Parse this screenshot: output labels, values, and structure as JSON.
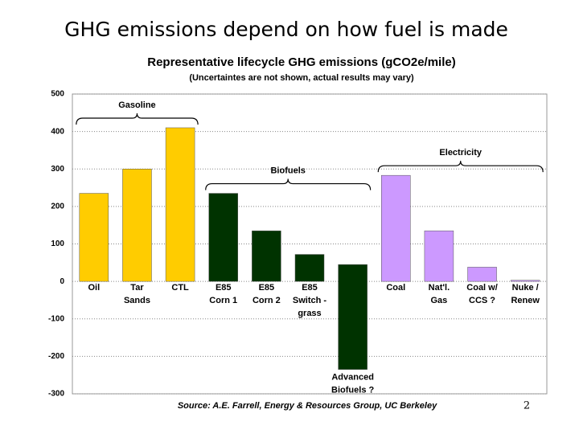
{
  "slide_title": "GHG emissions depend on how fuel is made",
  "page_number": "2",
  "chart_data": {
    "type": "bar",
    "title": "Representative lifecycle GHG emissions (gCO2e/mile)",
    "subtitle": "(Uncertaintes are not shown, actual results may vary)",
    "source": "Source: A.E. Farrell, Energy & Resources Group, UC Berkeley",
    "categories": [
      [
        "Oil"
      ],
      [
        "Tar",
        "Sands"
      ],
      [
        "CTL"
      ],
      [
        "E85",
        "Corn 1"
      ],
      [
        "E85",
        "Corn 2"
      ],
      [
        "E85",
        "Switch -",
        "grass"
      ],
      [
        "Advanced",
        "Biofuels ?"
      ],
      [
        "Coal"
      ],
      [
        "Nat'l.",
        "Gas"
      ],
      [
        "Coal w/",
        "CCS ?"
      ],
      [
        "Nuke /",
        "Renew"
      ]
    ],
    "values": [
      235,
      300,
      410,
      235,
      135,
      72,
      45,
      283,
      135,
      38,
      3
    ],
    "low_values": [
      0,
      0,
      0,
      0,
      0,
      0,
      -235,
      0,
      0,
      0,
      0
    ],
    "colors": [
      "#ffcc00",
      "#ffcc00",
      "#ffcc00",
      "#003300",
      "#003300",
      "#003300",
      "#003300",
      "#cc99ff",
      "#cc99ff",
      "#cc99ff",
      "#cc99ff"
    ],
    "groups": [
      {
        "label": "Gasoline",
        "range": [
          0,
          2
        ]
      },
      {
        "label": "Biofuels",
        "range": [
          3,
          6
        ]
      },
      {
        "label": "Electricity",
        "range": [
          7,
          10
        ]
      }
    ],
    "ylim": [
      -300,
      500
    ],
    "yticks": [
      -300,
      -200,
      -100,
      0,
      100,
      200,
      300,
      400,
      500
    ],
    "grid": true
  }
}
